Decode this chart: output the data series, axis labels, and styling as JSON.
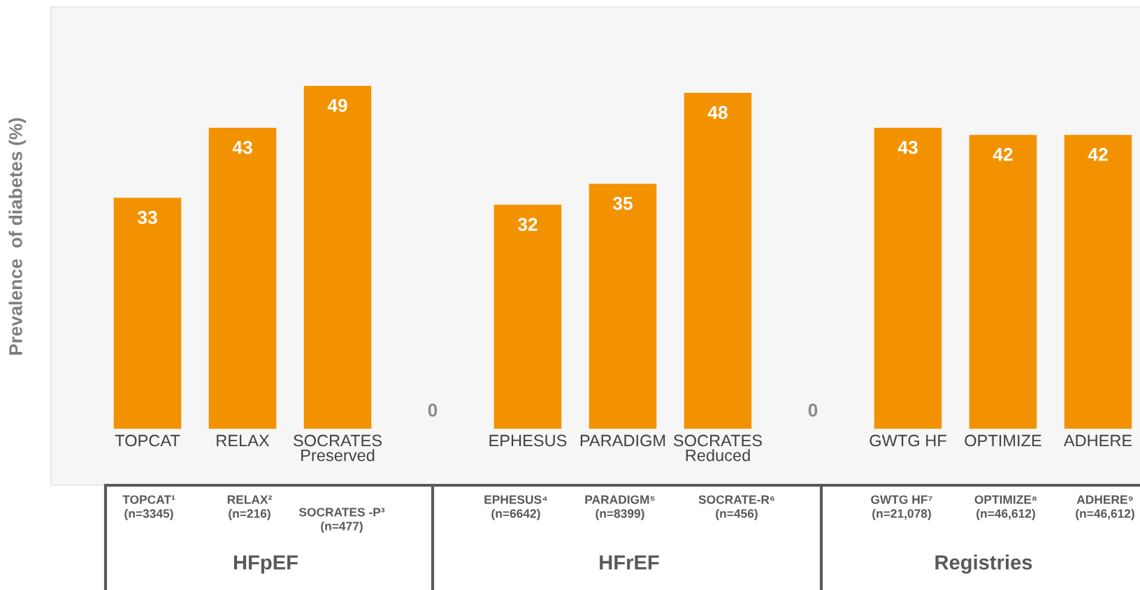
{
  "chart_data": {
    "type": "bar",
    "ylabel": "Prevalence  of diabetes (%)",
    "categories": [
      "TOPCAT",
      "RELAX",
      "SOCRATES\nPreserved",
      null,
      "EPHESUS",
      "PARADIGM",
      "SOCRATES\nReduced",
      null,
      "GWTG HF",
      "OPTIMIZE",
      "ADHERE"
    ],
    "values": [
      33,
      43,
      49,
      0,
      32,
      35,
      48,
      0,
      43,
      42,
      42
    ],
    "color": "#f39200",
    "data_labels": true,
    "annotations": [
      "TOPCAT¹\n(n=3345)",
      "RELAX²\n(n=216)",
      "SOCRATES -P³\n(n=477)",
      "EPHESUS⁴\n(n=6642)",
      "PARADIGM⁵\n(n=8399)",
      "SOCRATE-R⁶\n(n=456)",
      "GWTG HF⁷\n(n=21,078)",
      "OPTIMIZE⁸\n(n=46,612)",
      "ADHERE⁹\n(n=46,612)",
      "HFpEF",
      "HFrEF",
      "Registries"
    ]
  }
}
